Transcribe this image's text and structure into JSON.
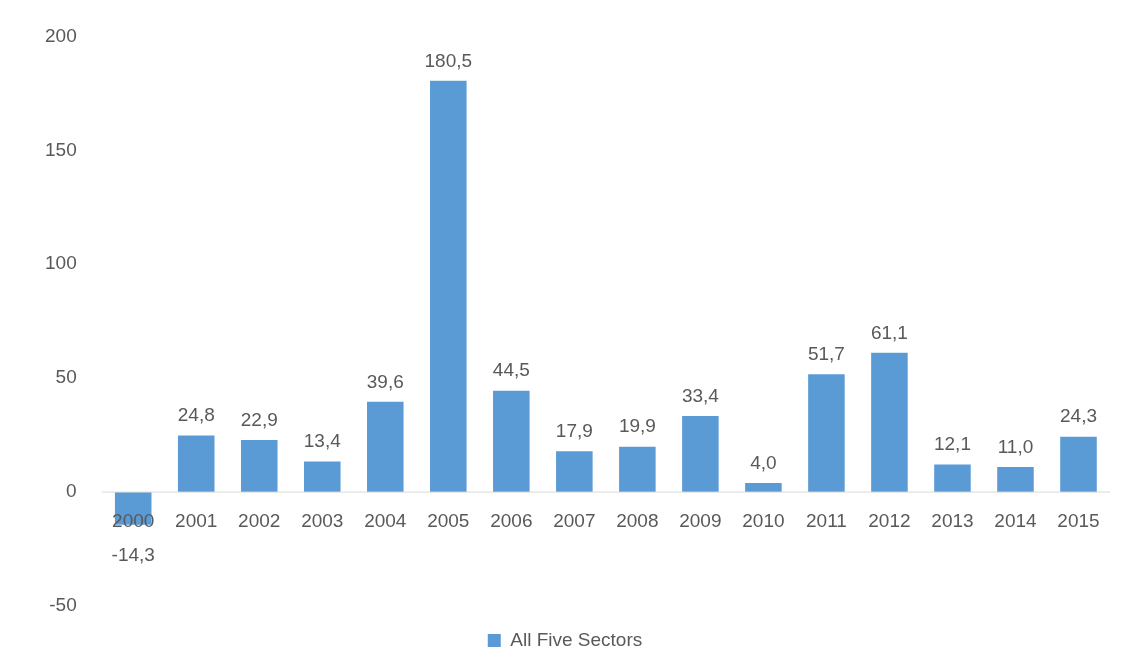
{
  "chart_data": {
    "type": "bar",
    "categories": [
      "2000",
      "2001",
      "2002",
      "2003",
      "2004",
      "2005",
      "2006",
      "2007",
      "2008",
      "2009",
      "2010",
      "2011",
      "2012",
      "2013",
      "2014",
      "2015"
    ],
    "series": [
      {
        "name": "All Five Sectors",
        "color": "#5b9bd5",
        "values": [
          -14.3,
          24.8,
          22.9,
          13.4,
          39.6,
          180.5,
          44.5,
          17.9,
          19.9,
          33.4,
          4.0,
          51.7,
          61.1,
          12.1,
          11.0,
          24.3
        ],
        "value_labels": [
          "-14,3",
          "24,8",
          "22,9",
          "13,4",
          "39,6",
          "180,5",
          "44,5",
          "17,9",
          "19,9",
          "33,4",
          "4,0",
          "51,7",
          "61,1",
          "12,1",
          "11,0",
          "24,3"
        ]
      }
    ],
    "ylim": [
      -50,
      200
    ],
    "yticks": [
      -50,
      0,
      50,
      100,
      150,
      200
    ],
    "grid": false,
    "legend": "bottom"
  }
}
